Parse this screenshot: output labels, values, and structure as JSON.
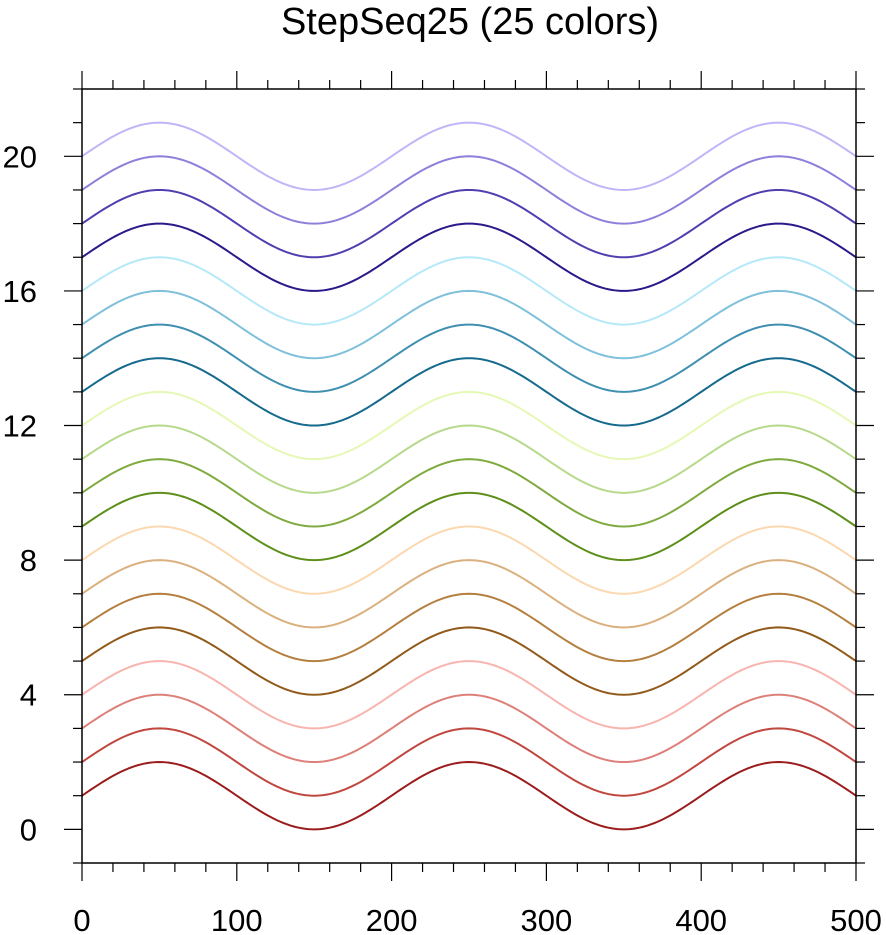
{
  "chart_data": {
    "type": "line",
    "title": "StepSeq25 (25 colors)",
    "xlabel": "",
    "ylabel": "",
    "xlim": [
      0,
      500
    ],
    "ylim": [
      -1,
      22
    ],
    "x_ticks": [
      0,
      100,
      200,
      300,
      400,
      500
    ],
    "y_ticks": [
      0,
      4,
      8,
      12,
      16,
      20
    ],
    "x_minor_step": 20,
    "y_minor_step": 1,
    "grid": false,
    "legend": "none",
    "curve_formula": "y = offset + 1 + sin(2*pi*(x - 0)/200)",
    "period": 200,
    "amplitude": 1,
    "series": [
      {
        "offset": 0,
        "color": "#9b1c1c",
        "x": [
          0,
          50,
          100,
          150,
          200,
          250,
          300,
          350,
          400,
          450,
          500
        ],
        "values": [
          1,
          2,
          1,
          0,
          1,
          2,
          1,
          0,
          1,
          2,
          1
        ]
      },
      {
        "offset": 1,
        "color": "#c0473f",
        "x": [
          0,
          50,
          100,
          150,
          200,
          250,
          300,
          350,
          400,
          450,
          500
        ],
        "values": [
          2,
          3,
          2,
          1,
          2,
          3,
          2,
          1,
          2,
          3,
          2
        ]
      },
      {
        "offset": 2,
        "color": "#dd8079",
        "x": [
          0,
          50,
          100,
          150,
          200,
          250,
          300,
          350,
          400,
          450,
          500
        ],
        "values": [
          3,
          4,
          3,
          2,
          3,
          4,
          3,
          2,
          3,
          4,
          3
        ]
      },
      {
        "offset": 3,
        "color": "#f8b5b0",
        "x": [
          0,
          50,
          100,
          150,
          200,
          250,
          300,
          350,
          400,
          450,
          500
        ],
        "values": [
          4,
          5,
          4,
          3,
          4,
          5,
          4,
          3,
          4,
          5,
          4
        ]
      },
      {
        "offset": 4,
        "color": "#925a1a",
        "x": [
          0,
          50,
          100,
          150,
          200,
          250,
          300,
          350,
          400,
          450,
          500
        ],
        "values": [
          5,
          6,
          5,
          4,
          5,
          6,
          5,
          4,
          5,
          6,
          5
        ]
      },
      {
        "offset": 5,
        "color": "#b57f3f",
        "x": [
          0,
          50,
          100,
          150,
          200,
          250,
          300,
          350,
          400,
          450,
          500
        ],
        "values": [
          6,
          7,
          6,
          5,
          6,
          7,
          6,
          5,
          6,
          7,
          6
        ]
      },
      {
        "offset": 6,
        "color": "#dbb07f",
        "x": [
          0,
          50,
          100,
          150,
          200,
          250,
          300,
          350,
          400,
          450,
          500
        ],
        "values": [
          7,
          8,
          7,
          6,
          7,
          8,
          7,
          6,
          7,
          8,
          7
        ]
      },
      {
        "offset": 7,
        "color": "#fbd8b0",
        "x": [
          0,
          50,
          100,
          150,
          200,
          250,
          300,
          350,
          400,
          450,
          500
        ],
        "values": [
          8,
          9,
          8,
          7,
          8,
          9,
          8,
          7,
          8,
          9,
          8
        ]
      },
      {
        "offset": 8,
        "color": "#5d8f1a",
        "x": [
          0,
          50,
          100,
          150,
          200,
          250,
          300,
          350,
          400,
          450,
          500
        ],
        "values": [
          9,
          10,
          9,
          8,
          9,
          10,
          9,
          8,
          9,
          10,
          9
        ]
      },
      {
        "offset": 9,
        "color": "#7faa3f",
        "x": [
          0,
          50,
          100,
          150,
          200,
          250,
          300,
          350,
          400,
          450,
          500
        ],
        "values": [
          10,
          11,
          10,
          9,
          10,
          11,
          10,
          9,
          10,
          11,
          10
        ]
      },
      {
        "offset": 10,
        "color": "#b6d98c",
        "x": [
          0,
          50,
          100,
          150,
          200,
          250,
          300,
          350,
          400,
          450,
          500
        ],
        "values": [
          11,
          12,
          11,
          10,
          11,
          12,
          11,
          10,
          11,
          12,
          11
        ]
      },
      {
        "offset": 11,
        "color": "#e5f8b5",
        "x": [
          0,
          50,
          100,
          150,
          200,
          250,
          300,
          350,
          400,
          450,
          500
        ],
        "values": [
          12,
          13,
          12,
          11,
          12,
          13,
          12,
          11,
          12,
          13,
          12
        ]
      },
      {
        "offset": 12,
        "color": "#166a8d",
        "x": [
          0,
          50,
          100,
          150,
          200,
          250,
          300,
          350,
          400,
          450,
          500
        ],
        "values": [
          13,
          14,
          13,
          12,
          13,
          14,
          13,
          12,
          13,
          14,
          13
        ]
      },
      {
        "offset": 13,
        "color": "#3f8fb0",
        "x": [
          0,
          50,
          100,
          150,
          200,
          250,
          300,
          350,
          400,
          450,
          500
        ],
        "values": [
          14,
          15,
          14,
          13,
          14,
          15,
          14,
          13,
          14,
          15,
          14
        ]
      },
      {
        "offset": 14,
        "color": "#7fc0db",
        "x": [
          0,
          50,
          100,
          150,
          200,
          250,
          300,
          350,
          400,
          450,
          500
        ],
        "values": [
          15,
          16,
          15,
          14,
          15,
          16,
          15,
          14,
          15,
          16,
          15
        ]
      },
      {
        "offset": 15,
        "color": "#b5e8f8",
        "x": [
          0,
          50,
          100,
          150,
          200,
          250,
          300,
          350,
          400,
          450,
          500
        ],
        "values": [
          16,
          17,
          16,
          15,
          16,
          17,
          16,
          15,
          16,
          17,
          16
        ]
      },
      {
        "offset": 16,
        "color": "#2a1a8a",
        "x": [
          0,
          50,
          100,
          150,
          200,
          250,
          300,
          350,
          400,
          450,
          500
        ],
        "values": [
          17,
          18,
          17,
          16,
          17,
          18,
          17,
          16,
          17,
          18,
          17
        ]
      },
      {
        "offset": 17,
        "color": "#4f3fb0",
        "x": [
          0,
          50,
          100,
          150,
          200,
          250,
          300,
          350,
          400,
          450,
          500
        ],
        "values": [
          18,
          19,
          18,
          17,
          18,
          19,
          18,
          17,
          18,
          19,
          18
        ]
      },
      {
        "offset": 18,
        "color": "#8f7fdb",
        "x": [
          0,
          50,
          100,
          150,
          200,
          250,
          300,
          350,
          400,
          450,
          500
        ],
        "values": [
          19,
          20,
          19,
          18,
          19,
          20,
          19,
          18,
          19,
          20,
          19
        ]
      },
      {
        "offset": 19,
        "color": "#c0b5f8",
        "x": [
          0,
          50,
          100,
          150,
          200,
          250,
          300,
          350,
          400,
          450,
          500
        ],
        "values": [
          20,
          21,
          20,
          19,
          20,
          21,
          20,
          19,
          20,
          21,
          20
        ]
      }
    ]
  }
}
